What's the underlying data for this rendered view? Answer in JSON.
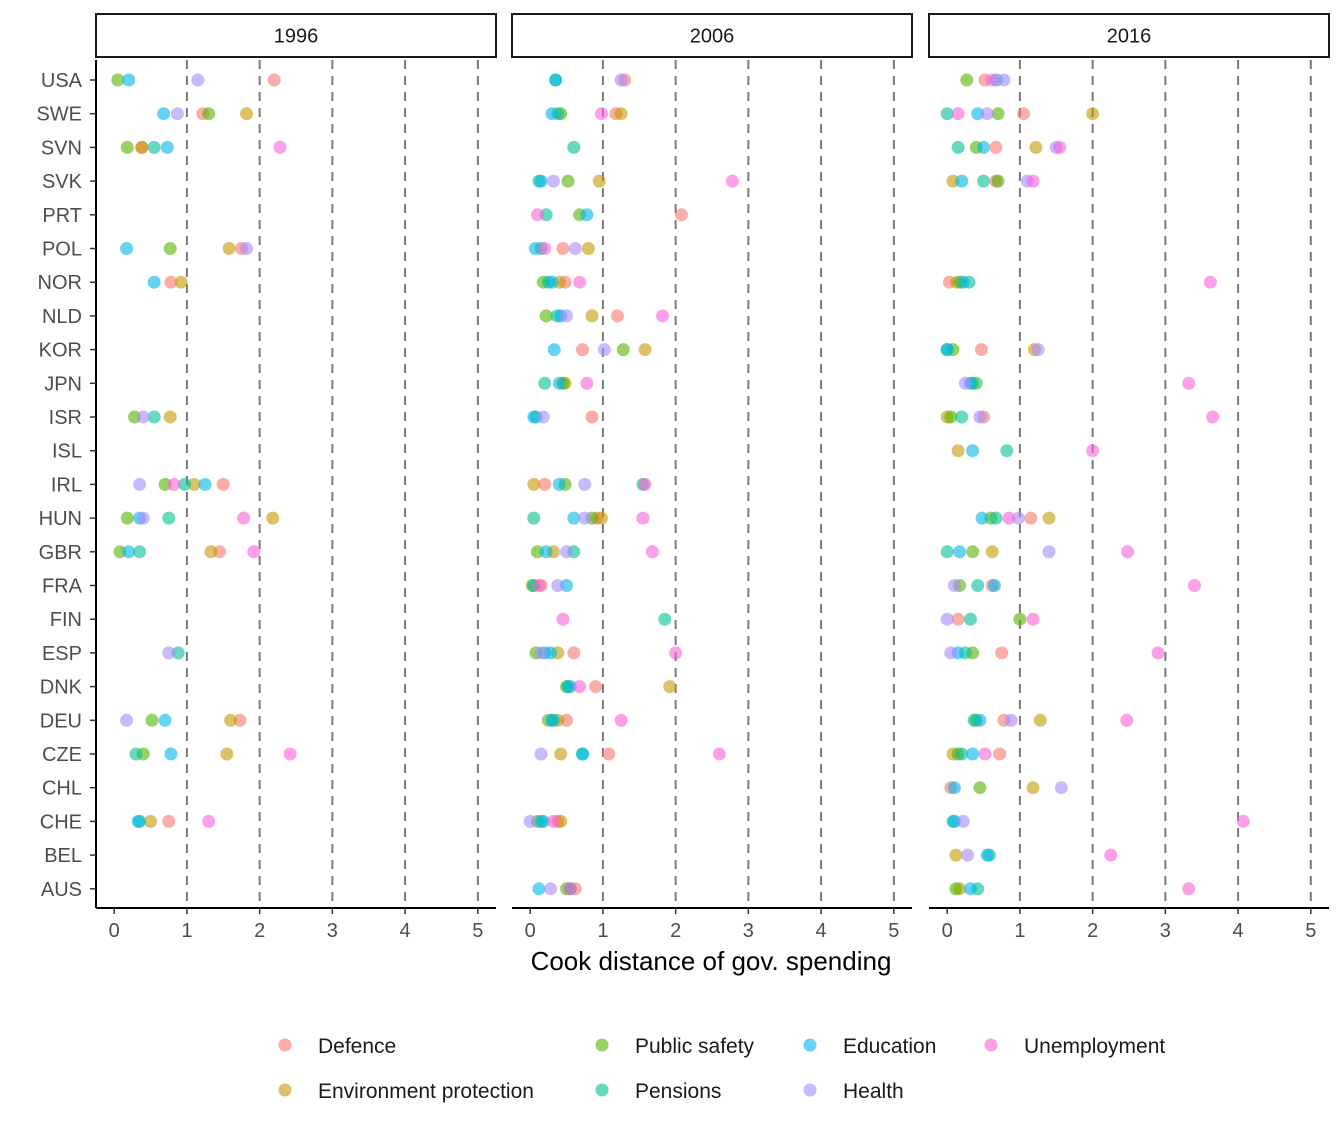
{
  "chart_data": {
    "type": "scatter",
    "facets": [
      "1996",
      "2006",
      "2016"
    ],
    "countries": [
      "USA",
      "SWE",
      "SVN",
      "SVK",
      "PRT",
      "POL",
      "NOR",
      "NLD",
      "KOR",
      "JPN",
      "ISR",
      "ISL",
      "IRL",
      "HUN",
      "GBR",
      "FRA",
      "FIN",
      "ESP",
      "DNK",
      "DEU",
      "CZE",
      "CHL",
      "CHE",
      "BEL",
      "AUS"
    ],
    "xlabel": "Cook distance of gov. spending",
    "xlim": [
      -0.25,
      5.25
    ],
    "xticks": [
      "0",
      "1",
      "2",
      "3",
      "4",
      "5"
    ],
    "reference_lines": [
      1,
      2,
      3,
      4,
      5
    ],
    "legend_position": "bottom",
    "series": [
      {
        "name": "Defence",
        "color": "#F8766D"
      },
      {
        "name": "Environment protection",
        "color": "#C49A00"
      },
      {
        "name": "Public safety",
        "color": "#53B400"
      },
      {
        "name": "Pensions",
        "color": "#00C094"
      },
      {
        "name": "Education",
        "color": "#00B6EB"
      },
      {
        "name": "Health",
        "color": "#A58AFF"
      },
      {
        "name": "Unemployment",
        "color": "#FB61D7"
      }
    ],
    "points": {
      "1996": {
        "USA": [
          2.2,
          null,
          0.05,
          null,
          0.2,
          1.15,
          null
        ],
        "SWE": [
          1.22,
          1.82,
          1.3,
          null,
          0.68,
          0.87,
          null
        ],
        "SVN": [
          0.38,
          0.38,
          0.18,
          0.55,
          0.73,
          null,
          2.28
        ],
        "SVK": [
          null,
          null,
          null,
          null,
          null,
          null,
          null
        ],
        "PRT": [
          null,
          null,
          null,
          null,
          null,
          null,
          null
        ],
        "POL": [
          1.75,
          1.58,
          0.77,
          null,
          0.17,
          1.82,
          null
        ],
        "NOR": [
          0.78,
          0.92,
          null,
          null,
          0.55,
          null,
          null
        ],
        "NLD": [
          null,
          null,
          null,
          null,
          null,
          null,
          null
        ],
        "KOR": [
          null,
          null,
          null,
          null,
          null,
          null,
          null
        ],
        "JPN": [
          null,
          null,
          null,
          null,
          null,
          null,
          null
        ],
        "ISR": [
          null,
          0.77,
          0.28,
          0.55,
          null,
          0.4,
          null
        ],
        "ISL": [
          null,
          null,
          null,
          null,
          null,
          null,
          null
        ],
        "IRL": [
          1.5,
          1.1,
          0.7,
          0.97,
          1.25,
          0.35,
          0.82
        ],
        "HUN": [
          null,
          2.18,
          0.18,
          0.75,
          0.35,
          0.4,
          1.78
        ],
        "GBR": [
          1.45,
          1.33,
          0.08,
          0.35,
          0.2,
          null,
          1.92
        ],
        "FRA": [
          null,
          null,
          null,
          null,
          null,
          null,
          null
        ],
        "FIN": [
          null,
          null,
          null,
          null,
          null,
          null,
          null
        ],
        "ESP": [
          null,
          null,
          null,
          0.88,
          null,
          0.75,
          null
        ],
        "DNK": [
          null,
          null,
          null,
          null,
          null,
          null,
          null
        ],
        "DEU": [
          1.73,
          1.6,
          0.52,
          null,
          0.7,
          0.17,
          null
        ],
        "CZE": [
          null,
          1.55,
          0.4,
          0.3,
          0.78,
          null,
          2.42
        ],
        "CHL": [
          null,
          null,
          null,
          null,
          null,
          null,
          null
        ],
        "CHE": [
          0.75,
          0.5,
          null,
          0.35,
          0.33,
          null,
          1.3
        ],
        "BEL": [
          null,
          null,
          null,
          null,
          null,
          null,
          null
        ],
        "AUS": [
          null,
          null,
          null,
          null,
          null,
          null,
          null
        ]
      },
      "2006": {
        "USA": [
          1.3,
          null,
          null,
          0.35,
          0.35,
          1.25,
          null
        ],
        "SWE": [
          1.18,
          1.25,
          0.42,
          0.38,
          0.3,
          null,
          0.98
        ],
        "SVN": [
          null,
          null,
          null,
          0.6,
          null,
          null,
          null
        ],
        "SVK": [
          null,
          0.95,
          0.52,
          0.12,
          0.15,
          0.32,
          2.78
        ],
        "PRT": [
          2.08,
          null,
          0.68,
          0.22,
          0.78,
          null,
          0.1
        ],
        "POL": [
          0.45,
          0.8,
          null,
          0.15,
          0.07,
          0.62,
          0.2
        ],
        "NOR": [
          0.48,
          0.4,
          0.18,
          0.25,
          0.3,
          null,
          0.68
        ],
        "NLD": [
          1.2,
          0.85,
          0.22,
          0.37,
          0.42,
          0.5,
          1.82
        ],
        "KOR": [
          0.72,
          1.58,
          1.28,
          null,
          0.33,
          1.02,
          null
        ],
        "JPN": [
          null,
          0.48,
          0.45,
          0.2,
          0.4,
          null,
          0.78
        ],
        "ISR": [
          0.85,
          null,
          null,
          0.08,
          0.05,
          0.18,
          null
        ],
        "ISL": [
          null,
          null,
          null,
          null,
          null,
          null,
          null
        ],
        "IRL": [
          0.2,
          0.05,
          0.48,
          1.55,
          0.4,
          0.75,
          1.58
        ],
        "HUN": [
          0.92,
          0.98,
          0.85,
          0.05,
          0.6,
          0.75,
          1.55
        ],
        "GBR": [
          null,
          0.32,
          0.1,
          0.6,
          0.22,
          0.5,
          1.68
        ],
        "FRA": [
          0.15,
          null,
          0.03,
          0.05,
          0.5,
          0.38,
          0.12
        ],
        "FIN": [
          null,
          null,
          null,
          1.85,
          null,
          null,
          0.45
        ],
        "ESP": [
          0.6,
          0.38,
          0.08,
          0.2,
          0.28,
          0.15,
          2.0
        ],
        "DNK": [
          0.9,
          1.92,
          0.5,
          0.52,
          0.55,
          null,
          0.68
        ],
        "DEU": [
          0.5,
          0.38,
          0.25,
          0.32,
          0.3,
          null,
          1.25
        ],
        "CZE": [
          1.08,
          0.42,
          null,
          0.72,
          0.72,
          0.15,
          2.6
        ],
        "CHL": [
          null,
          null,
          null,
          null,
          null,
          null,
          null
        ],
        "CHE": [
          0.38,
          0.42,
          0.1,
          0.18,
          0.15,
          0.0,
          0.32
        ],
        "BEL": [
          null,
          null,
          null,
          null,
          null,
          null,
          null
        ],
        "AUS": [
          0.62,
          null,
          0.5,
          0.55,
          0.12,
          0.28,
          0.55
        ]
      },
      "2016": {
        "USA": [
          0.52,
          null,
          0.27,
          null,
          0.68,
          0.78,
          0.62
        ],
        "SWE": [
          1.05,
          2.0,
          0.7,
          0.0,
          0.42,
          0.55,
          0.15
        ],
        "SVN": [
          0.67,
          1.22,
          0.4,
          0.15,
          0.5,
          1.5,
          1.55
        ],
        "SVK": [
          0.67,
          0.08,
          0.7,
          0.5,
          0.2,
          1.1,
          1.18
        ],
        "PRT": [
          null,
          null,
          null,
          null,
          null,
          null,
          null
        ],
        "POL": [
          null,
          null,
          null,
          null,
          null,
          null,
          null
        ],
        "NOR": [
          0.03,
          0.13,
          0.18,
          0.3,
          0.22,
          null,
          3.62
        ],
        "NLD": [
          null,
          null,
          null,
          null,
          null,
          null,
          null
        ],
        "KOR": [
          0.47,
          1.2,
          0.08,
          0.0,
          0.0,
          1.25,
          null
        ],
        "JPN": [
          null,
          null,
          0.4,
          0.35,
          0.32,
          0.25,
          3.32
        ],
        "ISR": [
          0.5,
          0.0,
          0.05,
          0.2,
          null,
          0.45,
          3.65
        ],
        "ISL": [
          null,
          0.15,
          null,
          0.82,
          0.35,
          null,
          2.0
        ],
        "IRL": [
          null,
          null,
          null,
          null,
          null,
          null,
          null
        ],
        "HUN": [
          1.15,
          1.4,
          0.6,
          0.67,
          0.48,
          0.98,
          0.85
        ],
        "GBR": [
          null,
          0.62,
          0.35,
          0.0,
          0.17,
          1.4,
          2.48
        ],
        "FRA": [
          0.62,
          null,
          0.17,
          0.42,
          0.65,
          0.1,
          3.4
        ],
        "FIN": [
          0.15,
          null,
          1.0,
          0.32,
          null,
          0.0,
          1.18
        ],
        "ESP": [
          0.75,
          null,
          0.35,
          0.25,
          0.15,
          0.05,
          2.9
        ],
        "DNK": [
          null,
          null,
          null,
          null,
          null,
          null,
          null
        ],
        "DEU": [
          0.78,
          1.28,
          0.4,
          0.37,
          0.45,
          0.88,
          2.47
        ],
        "CZE": [
          0.72,
          0.08,
          0.15,
          0.2,
          0.35,
          null,
          0.52
        ],
        "CHL": [
          0.05,
          1.18,
          0.45,
          null,
          0.1,
          1.57,
          null
        ],
        "CHE": [
          null,
          null,
          null,
          0.08,
          0.1,
          0.22,
          4.07
        ],
        "BEL": [
          null,
          0.12,
          null,
          0.58,
          0.55,
          0.28,
          2.25
        ],
        "AUS": [
          null,
          0.17,
          0.12,
          0.42,
          0.32,
          null,
          3.32
        ]
      }
    }
  }
}
